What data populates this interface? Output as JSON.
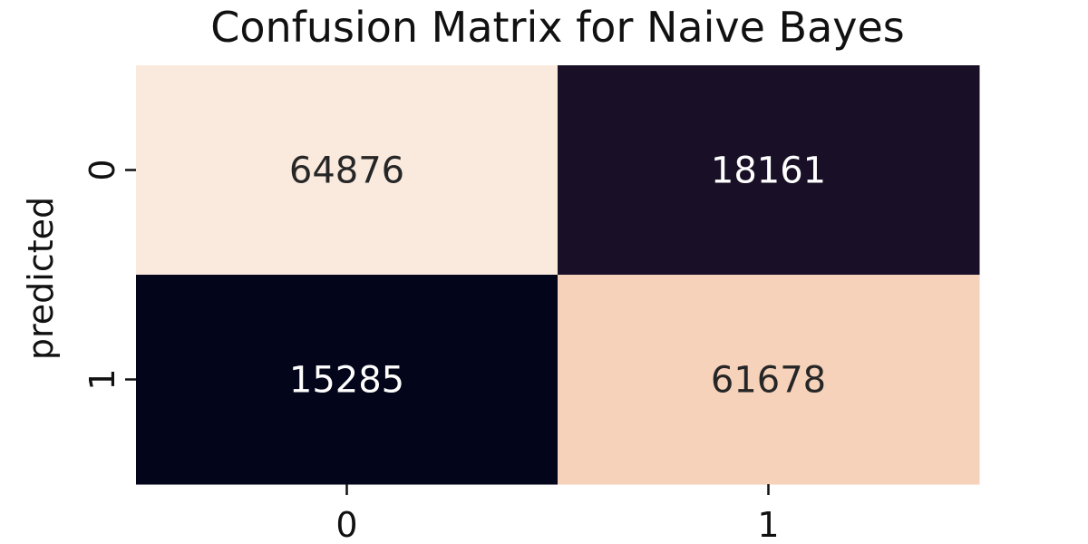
{
  "chart_data": {
    "type": "heatmap",
    "title": "Confusion Matrix for Naive Bayes",
    "xlabel": "",
    "ylabel": "predicted",
    "x_categories": [
      "0",
      "1"
    ],
    "y_categories": [
      "0",
      "1"
    ],
    "values": [
      [
        64876,
        18161
      ],
      [
        15285,
        61678
      ]
    ],
    "cell_colors": [
      [
        "#faeade",
        "#191027"
      ],
      [
        "#03051a",
        "#f6d2bb"
      ]
    ],
    "text_colors": [
      [
        "#262626",
        "#ffffff"
      ],
      [
        "#ffffff",
        "#262626"
      ]
    ],
    "colorbar": false,
    "grid": false
  }
}
